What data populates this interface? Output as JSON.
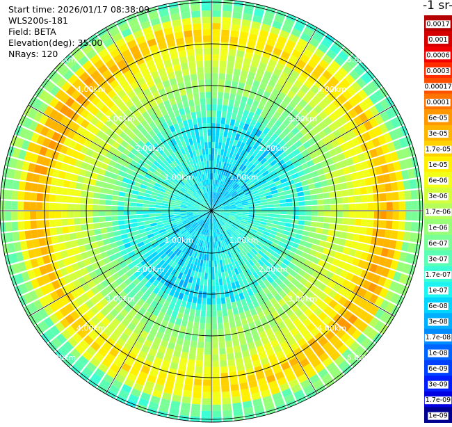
{
  "header": {
    "start_time": "Start time: 2026/01/17 08:38:09",
    "instrument": "WLS200s-181",
    "field": "Field: BETA",
    "elevation": "Elevation(deg): 35.00",
    "nrays": "NRays: 120"
  },
  "colorbar": {
    "unit_label": "-1 sr-",
    "ticks": [
      {
        "label": "0.0017",
        "color": "#b40000"
      },
      {
        "label": "0.001",
        "color": "#d50000"
      },
      {
        "label": "0.0006",
        "color": "#f20000"
      },
      {
        "label": "0.0003",
        "color": "#ff2d00"
      },
      {
        "label": "0.00017",
        "color": "#ff5000"
      },
      {
        "label": "0.0001",
        "color": "#ff7400"
      },
      {
        "label": "6e-05",
        "color": "#ff9800"
      },
      {
        "label": "3e-05",
        "color": "#ffb400"
      },
      {
        "label": "1.7e-05",
        "color": "#ffd100"
      },
      {
        "label": "1e-05",
        "color": "#fff000"
      },
      {
        "label": "6e-06",
        "color": "#f2ff18"
      },
      {
        "label": "3e-06",
        "color": "#d4ff3c"
      },
      {
        "label": "1.7e-06",
        "color": "#b6ff5a"
      },
      {
        "label": "1e-06",
        "color": "#98ff78"
      },
      {
        "label": "6e-07",
        "color": "#7aff96"
      },
      {
        "label": "3e-07",
        "color": "#5affb4"
      },
      {
        "label": "1.7e-07",
        "color": "#3cffd6"
      },
      {
        "label": "1e-07",
        "color": "#1ef4f0"
      },
      {
        "label": "6e-08",
        "color": "#00d4ff"
      },
      {
        "label": "3e-08",
        "color": "#00b0ff"
      },
      {
        "label": "1.7e-08",
        "color": "#008cff"
      },
      {
        "label": "1e-08",
        "color": "#0064ff"
      },
      {
        "label": "6e-09",
        "color": "#0040ff"
      },
      {
        "label": "3e-09",
        "color": "#001cff"
      },
      {
        "label": "1.7e-09",
        "color": "#0000e0"
      },
      {
        "label": "1e-09",
        "color": "#000090"
      }
    ]
  },
  "range_labels": [
    "1.00km",
    "2.00km",
    "3.00km",
    "4.00km",
    "5.00km"
  ],
  "plot": {
    "nrays": 120,
    "range_rings_km": [
      1,
      2,
      3,
      4,
      5
    ],
    "max_range_km": 5.1
  }
}
